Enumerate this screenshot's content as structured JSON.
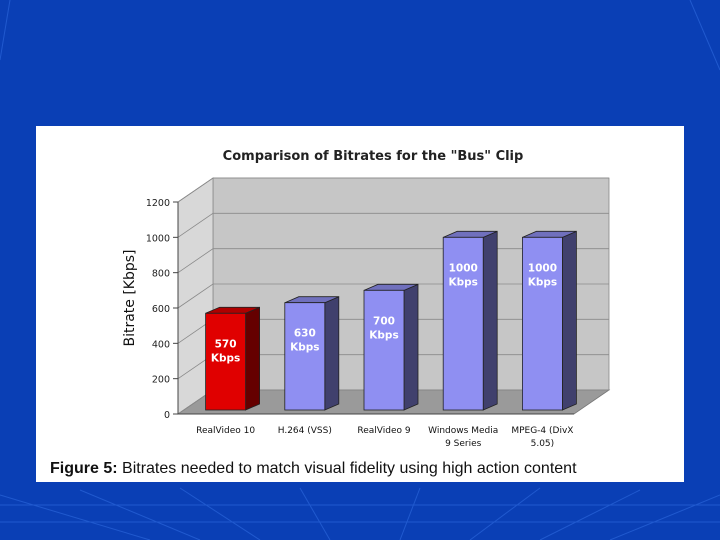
{
  "slide": {
    "background_color": "#0a3fb5",
    "accent_line_color": "#2f6be0"
  },
  "figure": {
    "caption_label": "Figure 5:",
    "caption_text": "Bitrates needed to match visual fidelity using high action content"
  },
  "chart_data": {
    "type": "bar",
    "style": "3d",
    "title": "Comparison of Bitrates for the \"Bus\" Clip",
    "ylabel": "Bitrate [Kbps]",
    "xlabel": "",
    "ylim": [
      0,
      1200
    ],
    "yticks": [
      0,
      200,
      400,
      600,
      800,
      1000,
      1200
    ],
    "grid": true,
    "legend": "none",
    "categories": [
      [
        "RealVideo 10"
      ],
      [
        "H.264 (VSS)"
      ],
      [
        "RealVideo 9"
      ],
      [
        "Windows Media",
        "9 Series"
      ],
      [
        "MPEG-4 (DivX",
        "5.05)"
      ]
    ],
    "values": [
      570,
      630,
      700,
      1000,
      1000
    ],
    "data_labels": [
      [
        "570",
        "Kbps"
      ],
      [
        "630",
        "Kbps"
      ],
      [
        "700",
        "Kbps"
      ],
      [
        "1000",
        "Kbps"
      ],
      [
        "1000",
        "Kbps"
      ]
    ],
    "colors": [
      "#e00000",
      "#8f8ff2",
      "#8f8ff2",
      "#8f8ff2",
      "#8f8ff2"
    ],
    "plot_wall_color": "#c6c6c6",
    "plot_floor_color": "#9a9a9a"
  }
}
